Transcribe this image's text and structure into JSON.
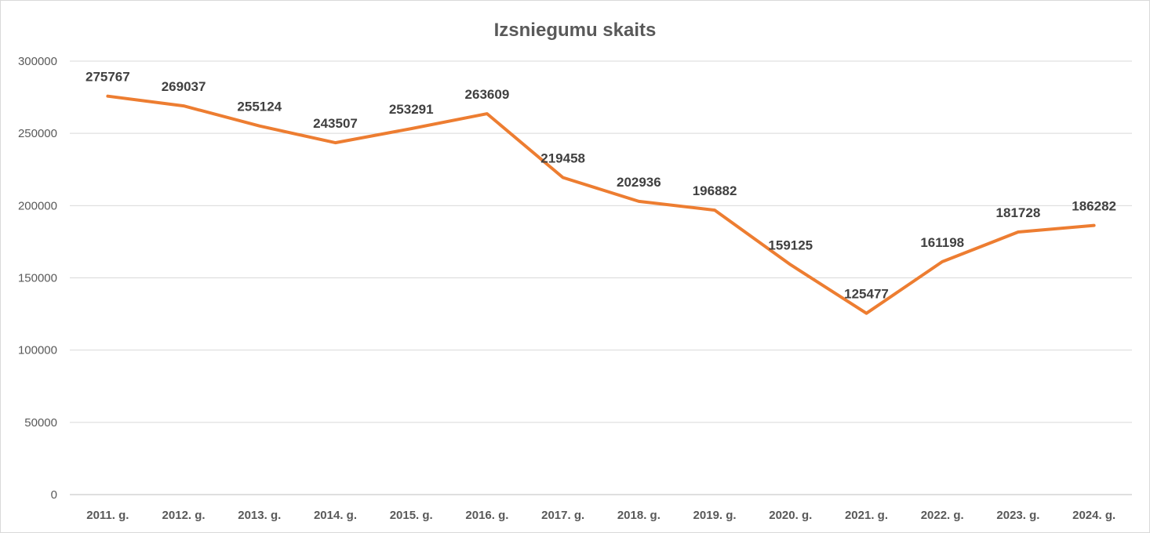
{
  "chart_data": {
    "type": "line",
    "title": "Izsniegumu skaits",
    "xlabel": "",
    "ylabel": "",
    "categories": [
      "2011. g.",
      "2012. g.",
      "2013. g.",
      "2014. g.",
      "2015. g.",
      "2016. g.",
      "2017. g.",
      "2018. g.",
      "2019. g.",
      "2020. g.",
      "2021. g.",
      "2022. g.",
      "2023. g.",
      "2024. g."
    ],
    "series": [
      {
        "values": [
          275767,
          269037,
          255124,
          243507,
          253291,
          263609,
          219458,
          202936,
          196882,
          159125,
          125477,
          161198,
          181728,
          186282
        ],
        "labels": [
          "275767",
          "269037",
          "255124",
          "243507",
          "253291",
          "263609",
          "219458",
          "202936",
          "196882",
          "159125",
          "125477",
          "161198",
          "181728",
          "186282"
        ],
        "color": "#ED7D31"
      }
    ],
    "ylim": [
      0,
      300000
    ],
    "yticks": [
      0,
      50000,
      100000,
      150000,
      200000,
      250000,
      300000
    ],
    "ytick_labels": [
      "0",
      "50000",
      "100000",
      "150000",
      "200000",
      "250000",
      "300000"
    ],
    "grid": true,
    "legend": "none"
  }
}
